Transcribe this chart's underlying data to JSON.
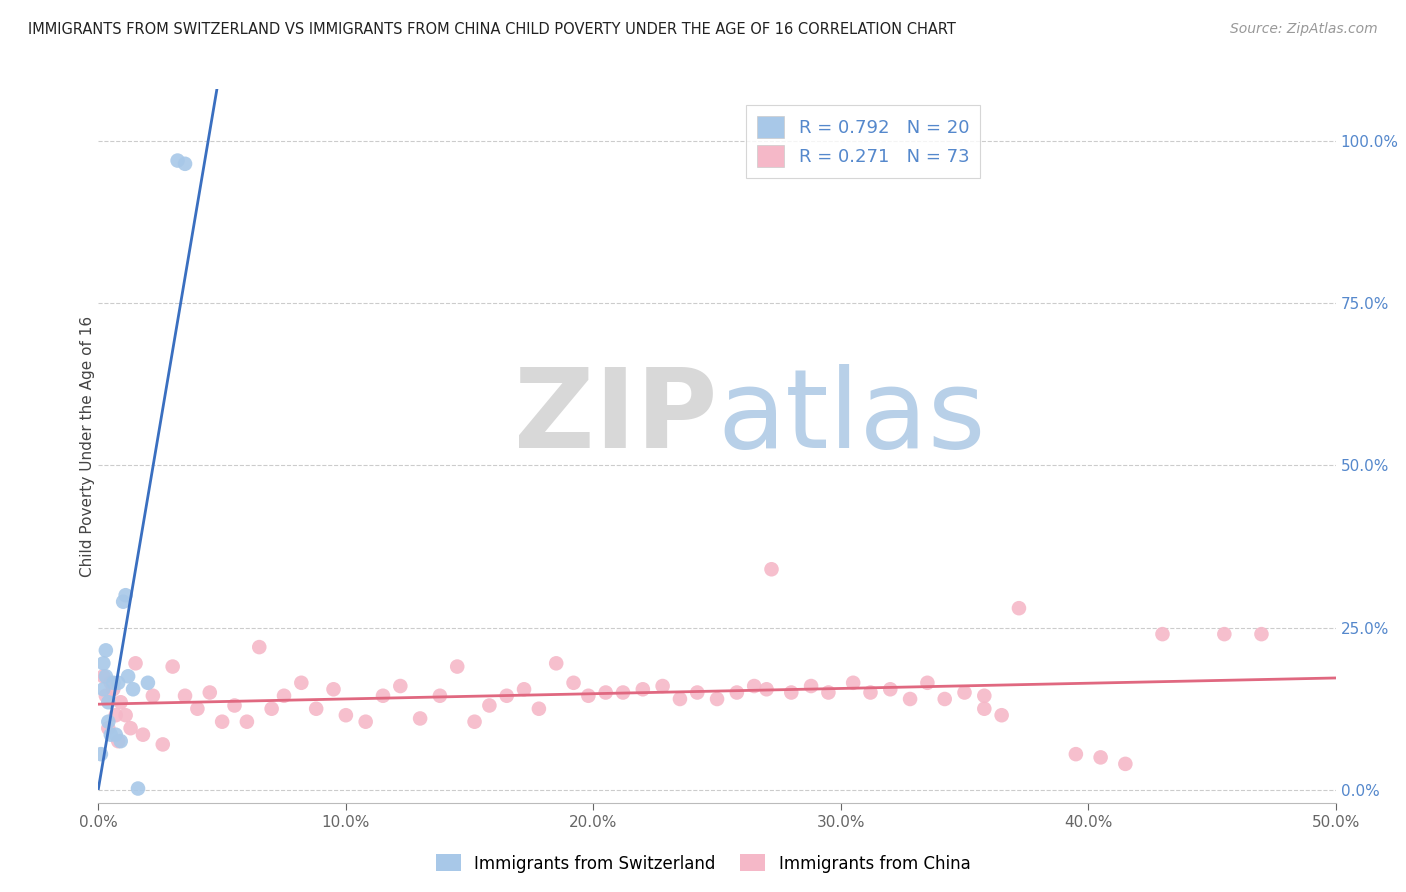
{
  "title": "IMMIGRANTS FROM SWITZERLAND VS IMMIGRANTS FROM CHINA CHILD POVERTY UNDER THE AGE OF 16 CORRELATION CHART",
  "source": "Source: ZipAtlas.com",
  "ylabel": "Child Poverty Under the Age of 16",
  "xlim": [
    0.0,
    0.5
  ],
  "ylim": [
    -0.02,
    1.08
  ],
  "plot_ylim": [
    0.0,
    1.0
  ],
  "xticks": [
    0.0,
    0.1,
    0.2,
    0.3,
    0.4,
    0.5
  ],
  "xticklabels": [
    "0.0%",
    "10.0%",
    "20.0%",
    "30.0%",
    "40.0%",
    "50.0%"
  ],
  "yticks": [
    0.0,
    0.25,
    0.5,
    0.75,
    1.0
  ],
  "yticklabels_right": [
    "0.0%",
    "25.0%",
    "50.0%",
    "75.0%",
    "100.0%"
  ],
  "switzerland_R": 0.792,
  "switzerland_N": 20,
  "china_R": 0.271,
  "china_N": 73,
  "switzerland_color": "#a8c8e8",
  "china_color": "#f5b8c8",
  "switzerland_line_color": "#3a6fc0",
  "china_line_color": "#e06880",
  "switzerland_x": [
    0.001,
    0.002,
    0.002,
    0.003,
    0.003,
    0.004,
    0.004,
    0.005,
    0.006,
    0.007,
    0.008,
    0.009,
    0.01,
    0.011,
    0.012,
    0.014,
    0.016,
    0.02,
    0.032,
    0.035
  ],
  "switzerland_y": [
    0.055,
    0.155,
    0.195,
    0.175,
    0.215,
    0.135,
    0.105,
    0.085,
    0.165,
    0.085,
    0.165,
    0.075,
    0.29,
    0.3,
    0.175,
    0.155,
    0.002,
    0.165,
    0.97,
    0.965
  ],
  "china_x": [
    0.002,
    0.003,
    0.004,
    0.005,
    0.006,
    0.007,
    0.008,
    0.009,
    0.011,
    0.013,
    0.015,
    0.018,
    0.022,
    0.026,
    0.03,
    0.035,
    0.04,
    0.045,
    0.05,
    0.055,
    0.06,
    0.065,
    0.07,
    0.075,
    0.082,
    0.088,
    0.095,
    0.1,
    0.108,
    0.115,
    0.122,
    0.13,
    0.138,
    0.145,
    0.152,
    0.158,
    0.165,
    0.172,
    0.178,
    0.185,
    0.192,
    0.198,
    0.205,
    0.212,
    0.22,
    0.228,
    0.235,
    0.242,
    0.25,
    0.258,
    0.265,
    0.272,
    0.28,
    0.288,
    0.295,
    0.27,
    0.305,
    0.312,
    0.32,
    0.328,
    0.335,
    0.342,
    0.35,
    0.358,
    0.365,
    0.372,
    0.358,
    0.395,
    0.405,
    0.415,
    0.43,
    0.455,
    0.47
  ],
  "china_y": [
    0.175,
    0.145,
    0.095,
    0.165,
    0.155,
    0.115,
    0.075,
    0.135,
    0.115,
    0.095,
    0.195,
    0.085,
    0.145,
    0.07,
    0.19,
    0.145,
    0.125,
    0.15,
    0.105,
    0.13,
    0.105,
    0.22,
    0.125,
    0.145,
    0.165,
    0.125,
    0.155,
    0.115,
    0.105,
    0.145,
    0.16,
    0.11,
    0.145,
    0.19,
    0.105,
    0.13,
    0.145,
    0.155,
    0.125,
    0.195,
    0.165,
    0.145,
    0.15,
    0.15,
    0.155,
    0.16,
    0.14,
    0.15,
    0.14,
    0.15,
    0.16,
    0.34,
    0.15,
    0.16,
    0.15,
    0.155,
    0.165,
    0.15,
    0.155,
    0.14,
    0.165,
    0.14,
    0.15,
    0.125,
    0.115,
    0.28,
    0.145,
    0.055,
    0.05,
    0.04,
    0.24,
    0.24,
    0.24
  ]
}
